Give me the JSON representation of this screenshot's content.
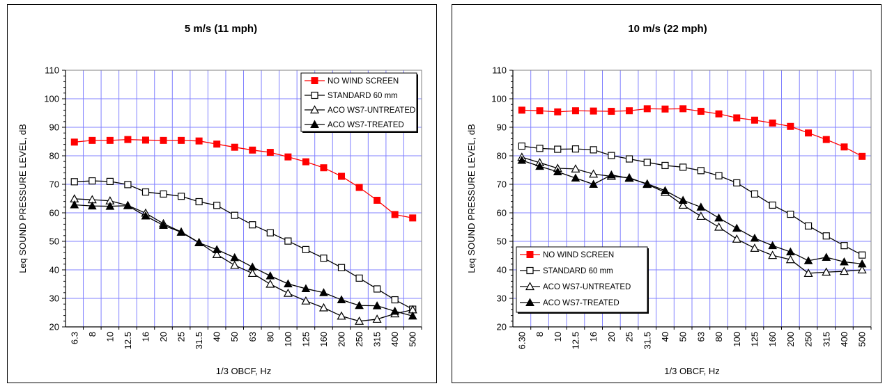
{
  "chart_data": [
    {
      "type": "line",
      "title": "5 m/s (11 mph)",
      "xlabel": "1/3 OBCF, Hz",
      "ylabel": "Leq SOUND PRESSURE LEVEL, dB",
      "ylim": [
        20,
        110
      ],
      "yticks": [
        20,
        30,
        40,
        50,
        60,
        70,
        80,
        90,
        100,
        110
      ],
      "categories": [
        "6.3",
        "8",
        "10",
        "12.5",
        "16",
        "20",
        "25",
        "31.5",
        "40",
        "50",
        "63",
        "80",
        "100",
        "125",
        "160",
        "200",
        "250",
        "315",
        "400",
        "500"
      ],
      "grid": true,
      "legend_position": "top-right",
      "series": [
        {
          "name": "NO  WIND SCREEN",
          "color": "#ff0000",
          "marker": "square-filled",
          "values": [
            84.8,
            85.4,
            85.4,
            85.7,
            85.5,
            85.4,
            85.4,
            85.2,
            84.1,
            83.0,
            82.0,
            81.2,
            79.6,
            77.9,
            75.8,
            72.8,
            68.9,
            64.4,
            59.4,
            58.2
          ]
        },
        {
          "name": "STANDARD  60 mm",
          "color": "#000000",
          "marker": "square-open",
          "values": [
            70.9,
            71.2,
            71.0,
            69.9,
            67.3,
            66.6,
            65.8,
            63.9,
            62.6,
            59.1,
            55.8,
            53.0,
            50.1,
            47.1,
            44.1,
            40.8,
            37.1,
            33.3,
            29.5,
            26.2
          ]
        },
        {
          "name": "ACO WS7-UNTREATED",
          "color": "#000000",
          "marker": "triangle-open",
          "values": [
            64.9,
            64.6,
            64.2,
            62.6,
            59.9,
            56.2,
            53.3,
            49.6,
            45.4,
            41.6,
            38.8,
            35.0,
            31.8,
            29.1,
            26.7,
            23.8,
            22.0,
            22.7,
            24.6,
            26.0
          ]
        },
        {
          "name": "ACO WS7-TREATED",
          "color": "#000000",
          "marker": "triangle-filled",
          "values": [
            62.8,
            62.4,
            62.3,
            62.5,
            58.9,
            55.6,
            53.2,
            49.5,
            47.1,
            44.3,
            41.0,
            37.9,
            35.1,
            33.4,
            32.0,
            29.5,
            27.5,
            27.4,
            25.5,
            23.8
          ]
        }
      ]
    },
    {
      "type": "line",
      "title": "10 m/s (22 mph)",
      "xlabel": "1/3 OBCF, Hz",
      "ylabel": "Leq SOUND PRESSURE LEVEL, dB",
      "ylim": [
        20,
        110
      ],
      "yticks": [
        20,
        30,
        40,
        50,
        60,
        70,
        80,
        90,
        100,
        110
      ],
      "categories": [
        "6.30",
        "8",
        "10",
        "12.5",
        "16",
        "20",
        "25",
        "31.5",
        "40",
        "50",
        "63",
        "80",
        "100",
        "125",
        "160",
        "200",
        "250",
        "315",
        "400",
        "500"
      ],
      "grid": true,
      "legend_position": "bottom-left",
      "series": [
        {
          "name": "NO  WIND SCREEN",
          "color": "#ff0000",
          "marker": "square-filled",
          "values": [
            96.0,
            95.8,
            95.4,
            95.8,
            95.7,
            95.6,
            95.8,
            96.5,
            96.4,
            96.5,
            95.6,
            94.7,
            93.3,
            92.5,
            91.5,
            90.3,
            88.0,
            85.7,
            83.1,
            79.8
          ]
        },
        {
          "name": "STANDARD  60 mm",
          "color": "#000000",
          "marker": "square-open",
          "values": [
            83.4,
            82.6,
            82.3,
            82.4,
            82.1,
            80.1,
            78.9,
            77.7,
            76.6,
            76.0,
            74.8,
            73.0,
            70.5,
            66.6,
            62.7,
            59.5,
            55.4,
            51.9,
            48.5,
            45.2
          ]
        },
        {
          "name": "ACO WS7-UNTREATED",
          "color": "#000000",
          "marker": "triangle-open",
          "values": [
            79.5,
            77.6,
            75.6,
            75.4,
            73.6,
            72.8,
            72.3,
            70.0,
            67.2,
            62.7,
            58.8,
            55.0,
            50.8,
            47.6,
            45.1,
            43.6,
            38.8,
            39.2,
            39.5,
            40.0
          ]
        },
        {
          "name": "ACO WS7-TREATED",
          "color": "#000000",
          "marker": "triangle-filled",
          "values": [
            78.4,
            76.3,
            74.4,
            72.2,
            70.0,
            73.3,
            72.1,
            70.2,
            67.8,
            64.4,
            62.0,
            58.2,
            54.6,
            51.1,
            48.5,
            46.3,
            43.2,
            44.4,
            42.8,
            42.1
          ]
        }
      ]
    }
  ]
}
